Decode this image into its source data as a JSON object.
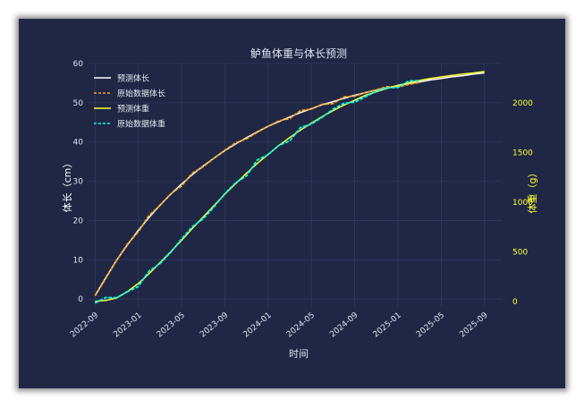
{
  "chart_data": {
    "type": "line",
    "title": "鲈鱼体重与体长预测",
    "xlabel": "时间",
    "ylabel_left": "体长（cm）",
    "ylabel_right": "体重（g）",
    "x_ticks": [
      "2022-09",
      "2023-01",
      "2023-05",
      "2023-09",
      "2024-01",
      "2024-05",
      "2024-09",
      "2025-01",
      "2025-05",
      "2025-09"
    ],
    "y_left_ticks": [
      0,
      10,
      20,
      30,
      40,
      50,
      60
    ],
    "y_right_ticks": [
      0,
      500,
      1000,
      1500,
      2000
    ],
    "ylim_left": [
      -2,
      60
    ],
    "ylim_right": [
      -55,
      2395
    ],
    "grid": true,
    "legend_position": "top-left",
    "x_units": "months since 2022-09",
    "series": [
      {
        "name": "预测体长",
        "axis": "left",
        "style": "solid",
        "color": "#ffffff",
        "x": [
          0,
          1,
          2,
          3,
          4,
          5,
          6,
          7,
          8,
          9,
          10,
          11,
          12,
          13,
          14,
          15,
          16,
          17,
          18,
          19,
          20,
          21,
          22,
          23,
          24,
          25,
          26,
          27,
          28,
          29,
          30,
          31,
          32,
          33,
          34,
          35,
          36
        ],
        "y": [
          0.9,
          5.5,
          9.9,
          13.8,
          17.5,
          20.8,
          23.9,
          26.7,
          29.3,
          31.7,
          33.9,
          35.9,
          37.8,
          39.5,
          41.1,
          42.6,
          44.0,
          45.2,
          46.4,
          47.5,
          48.5,
          49.5,
          50.3,
          51.1,
          51.9,
          52.6,
          53.2,
          53.8,
          54.3,
          54.9,
          55.3,
          55.8,
          56.2,
          56.6,
          56.9,
          57.3,
          57.6
        ]
      },
      {
        "name": "原始数据体长",
        "axis": "left",
        "style": "dashed",
        "color": "#f5a623",
        "x": [
          0,
          1,
          2,
          3,
          4,
          5,
          6,
          7,
          8,
          9,
          10,
          11,
          12,
          13,
          14,
          15,
          16,
          17,
          18,
          19,
          20,
          21,
          22,
          23,
          24,
          25,
          26,
          27,
          28,
          29,
          30
        ],
        "y": [
          0.9,
          5.6,
          9.7,
          14.0,
          17.3,
          21.0,
          23.7,
          26.9,
          29.1,
          31.9,
          33.7,
          36.1,
          37.6,
          39.7,
          40.9,
          42.8,
          43.8,
          45.4,
          46.2,
          47.7,
          48.3,
          49.7,
          50.1,
          51.3,
          51.7,
          52.8,
          53.0,
          54.0,
          54.1,
          55.0,
          55.0
        ]
      },
      {
        "name": "预测体重",
        "axis": "right",
        "style": "solid",
        "color": "#ffff33",
        "x": [
          0,
          1,
          2,
          3,
          4,
          5,
          6,
          7,
          8,
          9,
          10,
          11,
          12,
          13,
          14,
          15,
          16,
          17,
          18,
          19,
          20,
          21,
          22,
          23,
          24,
          25,
          26,
          27,
          28,
          29,
          30,
          31,
          32,
          33,
          34,
          35,
          36
        ],
        "y": [
          0,
          10,
          35,
          100,
          180,
          280,
          390,
          500,
          615,
          735,
          850,
          965,
          1080,
          1185,
          1290,
          1390,
          1480,
          1570,
          1650,
          1725,
          1795,
          1860,
          1920,
          1975,
          2025,
          2075,
          2110,
          2145,
          2175,
          2200,
          2225,
          2245,
          2260,
          2275,
          2290,
          2300,
          2315
        ]
      },
      {
        "name": "原始数据体重",
        "axis": "right",
        "style": "dashed",
        "color": "#00ffee",
        "x": [
          0,
          1,
          2,
          3,
          4,
          5,
          6,
          7,
          8,
          9,
          10,
          11,
          12,
          13,
          14,
          15,
          16,
          17,
          18,
          19,
          20,
          21,
          22,
          23,
          24,
          25,
          26,
          27,
          28,
          29,
          30
        ],
        "y": [
          0,
          15,
          30,
          105,
          175,
          290,
          380,
          510,
          605,
          745,
          840,
          975,
          1070,
          1195,
          1280,
          1400,
          1470,
          1580,
          1640,
          1735,
          1785,
          1870,
          1910,
          1985,
          2015,
          2085,
          2100,
          2150,
          2170,
          2195,
          2215
        ]
      }
    ]
  }
}
